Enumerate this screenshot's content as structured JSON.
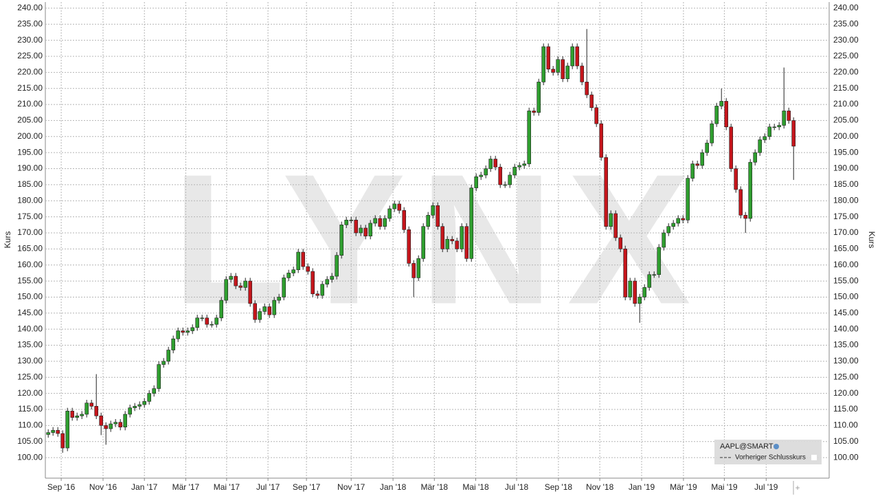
{
  "chart_data": {
    "type": "candlestick",
    "watermark": "LYNX",
    "y_label": "Kurs",
    "up_color": "#2f9e2f",
    "down_color": "#c4161c",
    "legend_box": {
      "instrument": "AAPL@SMART",
      "reference_line": "Vorheriger Schlusskurs"
    },
    "xlim": [
      -0.6,
      162.4
    ],
    "xticks": [
      {
        "value": 2.7,
        "label": "Sep '16"
      },
      {
        "value": 11.4,
        "label": "Nov '16"
      },
      {
        "value": 20,
        "label": "Jan '17"
      },
      {
        "value": 28.6,
        "label": "Mär '17"
      },
      {
        "value": 37.1,
        "label": "Mai '17"
      },
      {
        "value": 45.7,
        "label": "Jul '17"
      },
      {
        "value": 53.7,
        "label": "Sep '17"
      },
      {
        "value": 63,
        "label": "Nov '17"
      },
      {
        "value": 71.7,
        "label": "Jan '18"
      },
      {
        "value": 80.3,
        "label": "Mär '18"
      },
      {
        "value": 88.9,
        "label": "Mai '18"
      },
      {
        "value": 97.4,
        "label": "Jul '18"
      },
      {
        "value": 106.1,
        "label": "Sep '18"
      },
      {
        "value": 114.7,
        "label": "Nov '18"
      },
      {
        "value": 123.4,
        "label": "Jan '19"
      },
      {
        "value": 132.1,
        "label": "Mär '19"
      },
      {
        "value": 140.6,
        "label": "Mai '19"
      },
      {
        "value": 149.3,
        "label": "Jul '19"
      }
    ],
    "ylim": [
      93.6,
      241.9
    ],
    "yticks": [
      {
        "value": 100,
        "label": "100.00"
      },
      {
        "value": 105,
        "label": "105.00"
      },
      {
        "value": 110,
        "label": "110.00"
      },
      {
        "value": 115,
        "label": "115.00"
      },
      {
        "value": 120,
        "label": "120.00"
      },
      {
        "value": 125,
        "label": "125.00"
      },
      {
        "value": 130,
        "label": "130.00"
      },
      {
        "value": 135,
        "label": "135.00"
      },
      {
        "value": 140,
        "label": "140.00"
      },
      {
        "value": 145,
        "label": "145.00"
      },
      {
        "value": 150,
        "label": "150.00"
      },
      {
        "value": 155,
        "label": "155.00"
      },
      {
        "value": 160,
        "label": "160.00"
      },
      {
        "value": 165,
        "label": "165.00"
      },
      {
        "value": 170,
        "label": "170.00"
      },
      {
        "value": 175,
        "label": "175.00"
      },
      {
        "value": 180,
        "label": "180.00"
      },
      {
        "value": 185,
        "label": "185.00"
      },
      {
        "value": 190,
        "label": "190.00"
      },
      {
        "value": 195,
        "label": "195.00"
      },
      {
        "value": 200,
        "label": "200.00"
      },
      {
        "value": 205,
        "label": "205.00"
      },
      {
        "value": 210,
        "label": "210.00"
      },
      {
        "value": 215,
        "label": "215.00"
      },
      {
        "value": 220,
        "label": "220.00"
      },
      {
        "value": 225,
        "label": "225.00"
      },
      {
        "value": 230,
        "label": "230.00"
      },
      {
        "value": 235,
        "label": "235.00"
      },
      {
        "value": 240,
        "label": "240.00"
      }
    ],
    "grid": true,
    "series": [
      {
        "name": "AAPL@SMART",
        "open": [
          107.2,
          107.8,
          108.5,
          107.5,
          103,
          114.5,
          112.5,
          113,
          113.5,
          117,
          116,
          113,
          110,
          109,
          110.5,
          111,
          109.5,
          113.5,
          115.5,
          116,
          116.5,
          117.5,
          120,
          121.5,
          129,
          130,
          133.5,
          137,
          139.5,
          139,
          139.5,
          140.5,
          143.5,
          143.5,
          141.5,
          141.5,
          143.5,
          149,
          155.5,
          156.5,
          153.5,
          153,
          155,
          148,
          143,
          145.5,
          147,
          144.5,
          149,
          150,
          156,
          157.5,
          158.5,
          164,
          159.5,
          158,
          151,
          150.5,
          154,
          155.5,
          156.5,
          163,
          172.5,
          174,
          174,
          170,
          171.5,
          169,
          173,
          174.5,
          172,
          174.5,
          177.5,
          179,
          177,
          171,
          160.5,
          156,
          162,
          172,
          175.5,
          178.5,
          172,
          165,
          168,
          167.5,
          165,
          172,
          162,
          184,
          187.5,
          188,
          190,
          193,
          190.5,
          185,
          185,
          188,
          190.5,
          191,
          191.5,
          208,
          207.5,
          217,
          228,
          221,
          220,
          224,
          218,
          222,
          228,
          222,
          217,
          213,
          209,
          204,
          193.5,
          172,
          176,
          168.5,
          165,
          150,
          155,
          148,
          150,
          153,
          157,
          157,
          165.5,
          170,
          172,
          173,
          174.5,
          174,
          187,
          191.5,
          191,
          195,
          198,
          204,
          209.5,
          211,
          203,
          190,
          183.5,
          175.5,
          174.5,
          192,
          195,
          199,
          200,
          203,
          203,
          203.5,
          208,
          205
        ],
        "high": [
          108.8,
          109.5,
          109.5,
          108.5,
          115.5,
          115.5,
          114,
          114.5,
          118,
          118,
          126,
          114,
          111,
          111.5,
          112,
          112,
          114.5,
          116.5,
          117,
          117.5,
          118.5,
          121,
          122.5,
          130,
          131,
          134.5,
          138,
          140.5,
          140.5,
          140.5,
          141.5,
          144.5,
          144.5,
          144.5,
          142.5,
          144.5,
          150,
          156.5,
          157.5,
          157.5,
          154.5,
          156,
          156,
          149,
          146.5,
          148,
          148,
          150,
          151,
          157,
          158.5,
          159.5,
          165,
          165,
          160.5,
          159,
          152,
          155,
          156.5,
          157.5,
          164,
          173.5,
          175,
          175,
          175,
          172.5,
          172.5,
          174,
          175.5,
          175.5,
          175.5,
          178.5,
          180,
          180,
          178,
          172,
          161.5,
          163,
          173,
          176.5,
          179.5,
          179.5,
          173,
          169,
          169,
          168.5,
          173,
          173,
          185,
          188.5,
          189,
          191,
          194,
          194,
          191.5,
          186,
          189,
          191.5,
          192,
          192.5,
          209,
          209,
          218,
          229,
          229,
          222,
          225,
          225,
          223,
          229,
          229,
          223,
          233.5,
          214,
          210,
          205,
          194.5,
          177,
          177,
          169.5,
          166,
          156,
          156,
          151,
          154,
          158,
          158,
          166.5,
          171,
          173,
          174,
          175.5,
          175.5,
          188,
          192.5,
          192.5,
          196,
          199,
          205,
          210.5,
          215,
          212,
          204,
          191,
          184.5,
          176.5,
          193,
          196,
          200,
          201,
          204,
          204,
          204.5,
          221.5,
          209,
          206
        ],
        "low": [
          106.2,
          106.8,
          106.5,
          101.5,
          102,
          111.5,
          111.5,
          112,
          112.5,
          115,
          112,
          107,
          104,
          108,
          109.5,
          108.5,
          108.5,
          112.5,
          114.5,
          115,
          115.5,
          116.5,
          119,
          120.5,
          128,
          129,
          132.5,
          136,
          138,
          138,
          138.5,
          139.5,
          142.5,
          140.5,
          140.5,
          140.5,
          142.5,
          148,
          154.5,
          152.5,
          152,
          152,
          147,
          142,
          142,
          144.5,
          143.5,
          143.5,
          148,
          149,
          155,
          156.5,
          157.5,
          158.5,
          157,
          150,
          149.5,
          149.5,
          153,
          154.5,
          155.5,
          162,
          171.5,
          173,
          169,
          169,
          168,
          168,
          172,
          171,
          171,
          173.5,
          176.5,
          176,
          170,
          159.5,
          150,
          155,
          161,
          171,
          174.5,
          171,
          164,
          164,
          166.5,
          164,
          164,
          161,
          161,
          183,
          186.5,
          187,
          189,
          189.5,
          184,
          184,
          184,
          187,
          189.5,
          190,
          190.5,
          206.5,
          206.5,
          216,
          220,
          219,
          219,
          217,
          217,
          221,
          221,
          216,
          212,
          208,
          203,
          192.5,
          171,
          171,
          167.5,
          164,
          149,
          149,
          147,
          142,
          149,
          152,
          156,
          156,
          164.5,
          169,
          171,
          172,
          173,
          173,
          186,
          190,
          190,
          194,
          197,
          203,
          208.5,
          202,
          189,
          182.5,
          174.5,
          170,
          173.5,
          191,
          194,
          198,
          199,
          202,
          202,
          202.5,
          204,
          186.5
        ],
        "close": [
          107.8,
          108.5,
          107.5,
          103,
          114.5,
          112.5,
          113,
          113.5,
          117,
          116,
          113,
          110,
          109,
          110.5,
          111,
          109.5,
          113.5,
          115.5,
          116,
          116.5,
          117.5,
          120,
          121.5,
          129,
          130,
          133.5,
          137,
          139.5,
          139,
          139.5,
          140.5,
          143.5,
          143.5,
          141.5,
          141.5,
          143.5,
          149,
          155.5,
          156.5,
          153.5,
          153,
          155,
          148,
          143,
          145.5,
          147,
          144.5,
          149,
          150,
          156,
          157.5,
          158.5,
          164,
          159.5,
          158,
          151,
          150.5,
          154,
          155.5,
          156.5,
          163,
          172.5,
          174,
          174,
          170,
          171.5,
          169,
          173,
          174.5,
          172,
          174.5,
          177.5,
          179,
          177,
          171,
          160.5,
          156,
          162,
          172,
          175.5,
          178.5,
          172,
          165,
          168,
          167.5,
          165,
          172,
          162,
          184,
          187.5,
          188,
          190,
          193,
          190.5,
          185,
          185,
          188,
          190.5,
          191,
          191.5,
          208,
          207.5,
          217,
          228,
          221,
          220,
          224,
          218,
          222,
          228,
          222,
          217,
          213,
          209,
          204,
          193.5,
          172,
          176,
          168.5,
          165,
          150,
          155,
          148,
          150,
          153,
          157,
          157,
          165.5,
          170,
          172,
          173,
          174.5,
          174,
          187,
          191.5,
          191,
          195,
          198,
          204,
          209.5,
          211,
          203,
          190,
          183.5,
          175.5,
          174.5,
          192,
          195,
          199,
          200,
          203,
          203,
          203.5,
          208,
          205,
          197
        ]
      }
    ]
  }
}
